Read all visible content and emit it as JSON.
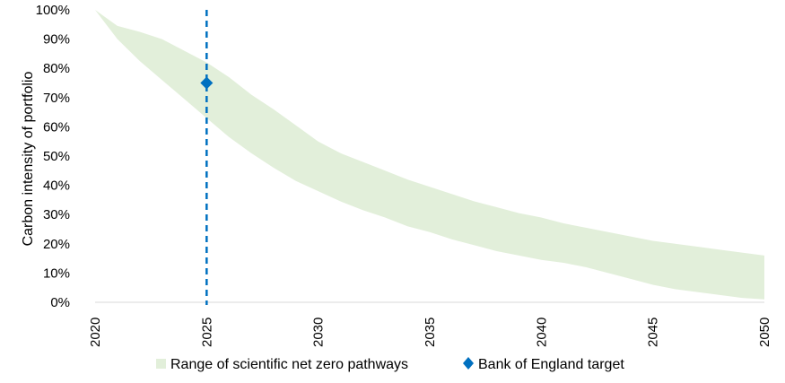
{
  "chart_data": {
    "type": "area",
    "title": "",
    "xlabel": "",
    "ylabel": "Carbon intensity of portfolio",
    "xlim": [
      2020,
      2050
    ],
    "ylim": [
      0,
      100
    ],
    "x_ticks": [
      "2020",
      "2025",
      "2030",
      "2035",
      "2040",
      "2045",
      "2050"
    ],
    "y_ticks": [
      "0%",
      "10%",
      "20%",
      "30%",
      "40%",
      "50%",
      "60%",
      "70%",
      "80%",
      "90%",
      "100%"
    ],
    "grid": false,
    "legend_position": "bottom",
    "series": [
      {
        "name": "Range of scientific net zero pathways",
        "type": "range",
        "color": "#e2efda",
        "x": [
          2020,
          2021,
          2022,
          2023,
          2024,
          2025,
          2026,
          2027,
          2028,
          2029,
          2030,
          2031,
          2032,
          2033,
          2034,
          2035,
          2036,
          2037,
          2038,
          2039,
          2040,
          2041,
          2042,
          2043,
          2044,
          2045,
          2046,
          2047,
          2048,
          2049,
          2050
        ],
        "upper": [
          100,
          94.5,
          92.5,
          90,
          86,
          82,
          77,
          71,
          66,
          60.5,
          55,
          51,
          48,
          45,
          42,
          39.5,
          37,
          34.5,
          32.5,
          30.5,
          29,
          27,
          25.5,
          24,
          22.5,
          21,
          20,
          19,
          18,
          17,
          16
        ],
        "lower": [
          100,
          90,
          82.5,
          76,
          69.5,
          63,
          56.5,
          51,
          46,
          41.5,
          38,
          34.5,
          31.5,
          29,
          26,
          24,
          21.5,
          19.5,
          17.5,
          16,
          14.5,
          13.5,
          12,
          10,
          8,
          6,
          4.5,
          3.5,
          2.5,
          1.5,
          1
        ]
      },
      {
        "name": "Bank of England target",
        "type": "marker",
        "color": "#0070c0",
        "x": 2025,
        "y": 75
      }
    ],
    "annotations": [
      {
        "type": "vertical-dashed-line",
        "x": 2025,
        "color": "#0070c0"
      }
    ]
  }
}
